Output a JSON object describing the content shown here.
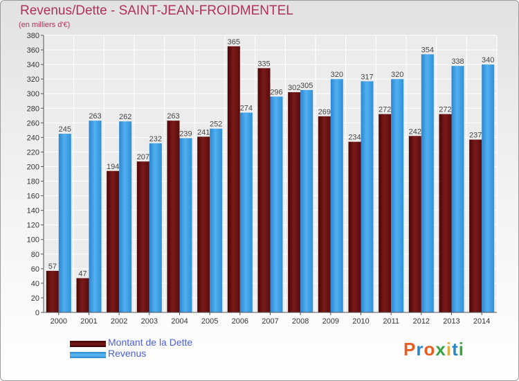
{
  "header": {
    "title": "Revenus/Dette - SAINT-JEAN-FROIDMENTEL",
    "subtitle": "(en milliers d'€)"
  },
  "legend": {
    "items": [
      {
        "label": "Montant de la Dette",
        "color": "#6e1010"
      },
      {
        "label": "Revenus",
        "color": "#3a9ee6"
      }
    ]
  },
  "logo": {
    "text": "Proxiti",
    "letters": [
      "P",
      "r",
      "o",
      "x",
      "i",
      "t",
      "i"
    ],
    "colors": [
      "#e85c20",
      "#2c86c6",
      "#e85c20",
      "#3aa140",
      "#e8b020",
      "#2c86c6",
      "#3aa140"
    ]
  },
  "chart_data": {
    "type": "bar",
    "title": "Revenus/Dette - SAINT-JEAN-FROIDMENTEL",
    "subtitle": "(en milliers d'€)",
    "xlabel": "",
    "ylabel": "",
    "ylim": [
      0,
      380
    ],
    "yticks": [
      0,
      20,
      40,
      60,
      80,
      100,
      120,
      140,
      160,
      180,
      200,
      220,
      240,
      260,
      280,
      300,
      320,
      340,
      360,
      380
    ],
    "grid": true,
    "legend_position": "bottom-left",
    "categories": [
      "2000",
      "2001",
      "2002",
      "2003",
      "2004",
      "2005",
      "2006",
      "2007",
      "2008",
      "2009",
      "2010",
      "2011",
      "2012",
      "2013",
      "2014"
    ],
    "series": [
      {
        "name": "Montant de la Dette",
        "color": "#6e1010",
        "values": [
          57,
          47,
          194,
          207,
          263,
          241,
          365,
          335,
          302,
          269,
          234,
          272,
          242,
          272,
          237
        ]
      },
      {
        "name": "Revenus",
        "color": "#3a9ee6",
        "values": [
          245,
          263,
          262,
          232,
          239,
          252,
          274,
          296,
          305,
          320,
          317,
          320,
          354,
          338,
          340
        ]
      }
    ]
  }
}
